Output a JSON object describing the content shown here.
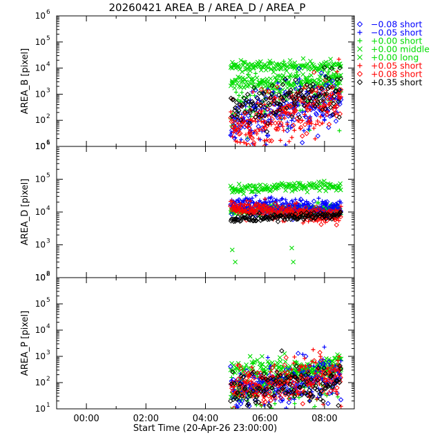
{
  "title": "20260421 AREA_B / AREA_D / AREA_P",
  "x_axis": {
    "label": "Start Time (20-Apr-26 23:00:00)",
    "range_hours": [
      -1,
      9
    ],
    "ticks": [
      {
        "value": 0,
        "label": "00:00"
      },
      {
        "value": 2,
        "label": "02:00"
      },
      {
        "value": 4,
        "label": "04:00"
      },
      {
        "value": 6,
        "label": "06:00"
      },
      {
        "value": 8,
        "label": "08:00"
      }
    ]
  },
  "legend": [
    {
      "id": "m008",
      "label": "−0.08 short",
      "symbol": "diamond",
      "color": "#0000ff"
    },
    {
      "id": "m005",
      "label": "−0.05 short",
      "symbol": "plus",
      "color": "#0000ff"
    },
    {
      "id": "p000s",
      "label": "+0.00 short",
      "symbol": "plus",
      "color": "#00dd00"
    },
    {
      "id": "p000m",
      "label": "+0.00 middle",
      "symbol": "cross",
      "color": "#00dd00"
    },
    {
      "id": "p000l",
      "label": "+0.00 long",
      "symbol": "cross",
      "color": "#00dd00"
    },
    {
      "id": "p005",
      "label": "+0.05 short",
      "symbol": "plus",
      "color": "#ff0000"
    },
    {
      "id": "p008",
      "label": "+0.08 short",
      "symbol": "diamond",
      "color": "#ff0000"
    },
    {
      "id": "p035",
      "label": "+0.35 short",
      "symbol": "diamond",
      "color": "#000000"
    }
  ],
  "chart_data": [
    {
      "type": "scatter",
      "panel": "AREA_B",
      "ylabel": "AREA_B [pixel]",
      "yscale": "log",
      "ylim": [
        10,
        1000000
      ],
      "ytick_labels": [
        "10^1",
        "10^2",
        "10^3",
        "10^4",
        "10^5",
        "10^6"
      ],
      "data_x_range_hours": [
        4.85,
        8.55
      ],
      "series": [
        {
          "name": "+0.00 long",
          "level": [
            3000,
            3000
          ],
          "spread_dex": 0.15,
          "points": [
            [
              4.9,
              3200
            ],
            [
              5.2,
              2800
            ],
            [
              5.6,
              3100
            ],
            [
              6.0,
              2900
            ],
            [
              6.4,
              3300
            ],
            [
              6.8,
              3000
            ],
            [
              7.2,
              3100
            ],
            [
              7.6,
              2900
            ],
            [
              8.0,
              3200
            ],
            [
              8.4,
              3000
            ]
          ]
        },
        {
          "name": "+0.00 middle",
          "level": [
            12000,
            12000
          ],
          "spread_dex": 0.1,
          "points": [
            [
              4.9,
              10000
            ],
            [
              5.1,
              12000
            ],
            [
              5.4,
              13000
            ],
            [
              5.8,
              14000
            ],
            [
              6.2,
              9000
            ],
            [
              6.6,
              1500
            ],
            [
              7.0,
              16000
            ],
            [
              7.4,
              3000
            ],
            [
              7.8,
              3500
            ],
            [
              8.2,
              3800
            ],
            [
              8.5,
              4000
            ]
          ]
        },
        {
          "name": "+0.00 short",
          "level": [
            300,
            2000
          ],
          "spread_dex": 0.5,
          "points": [
            [
              5.0,
              150
            ],
            [
              5.5,
              900
            ],
            [
              6.0,
              700
            ],
            [
              6.5,
              1500
            ],
            [
              7.0,
              300
            ],
            [
              7.5,
              1100
            ],
            [
              8.0,
              500
            ],
            [
              8.5,
              40
            ]
          ]
        },
        {
          "name": "−0.05 short",
          "level": [
            60,
            800
          ],
          "spread_dex": 0.5,
          "points": [
            [
              5.0,
              60
            ],
            [
              5.5,
              40
            ],
            [
              6.0,
              80
            ],
            [
              6.5,
              150
            ],
            [
              7.0,
              300
            ],
            [
              7.5,
              60
            ],
            [
              8.0,
              100
            ],
            [
              8.5,
              1000
            ]
          ]
        },
        {
          "name": "−0.08 short",
          "level": [
            80,
            600
          ],
          "spread_dex": 0.5,
          "points": [
            [
              5.0,
              100
            ],
            [
              5.5,
              70
            ],
            [
              6.0,
              150
            ],
            [
              6.5,
              250
            ],
            [
              7.0,
              250
            ],
            [
              7.5,
              100
            ],
            [
              8.0,
              150
            ],
            [
              8.5,
              500
            ]
          ]
        },
        {
          "name": "+0.05 short",
          "level": [
            40,
            600
          ],
          "spread_dex": 0.5,
          "points": [
            [
              5.0,
              40
            ],
            [
              5.5,
              25
            ],
            [
              6.0,
              60
            ],
            [
              6.5,
              120
            ],
            [
              7.0,
              200
            ],
            [
              7.5,
              80
            ],
            [
              8.0,
              300
            ],
            [
              8.5,
              800
            ]
          ]
        },
        {
          "name": "+0.08 short",
          "level": [
            50,
            700
          ],
          "spread_dex": 0.5,
          "points": [
            [
              5.0,
              50
            ],
            [
              5.5,
              30
            ],
            [
              6.0,
              50
            ],
            [
              6.5,
              150
            ],
            [
              7.0,
              220
            ],
            [
              7.5,
              120
            ],
            [
              8.0,
              350
            ],
            [
              8.5,
              700
            ]
          ]
        },
        {
          "name": "+0.35 short",
          "level": [
            300,
            1500
          ],
          "spread_dex": 0.4,
          "points": [
            [
              5.0,
              300
            ],
            [
              5.5,
              200
            ],
            [
              6.0,
              150
            ],
            [
              6.5,
              250
            ],
            [
              7.0,
              400
            ],
            [
              7.5,
              700
            ],
            [
              8.0,
              1000
            ],
            [
              8.5,
              1500
            ]
          ]
        }
      ]
    },
    {
      "type": "scatter",
      "panel": "AREA_D",
      "ylabel": "AREA_D [pixel]",
      "yscale": "log",
      "ylim": [
        100,
        1000000
      ],
      "ytick_labels": [
        "10^2",
        "10^3",
        "10^4",
        "10^5",
        "10^6"
      ],
      "data_x_range_hours": [
        4.85,
        8.55
      ],
      "series": [
        {
          "name": "+0.00 long",
          "level": [
            50000,
            60000
          ],
          "spread_dex": 0.08,
          "points": [
            [
              4.9,
              40000
            ],
            [
              5.2,
              55000
            ],
            [
              5.6,
              60000
            ],
            [
              6.0,
              50000
            ],
            [
              6.4,
              65000
            ],
            [
              6.8,
              60000
            ],
            [
              7.0,
              50000
            ],
            [
              8.5,
              55000
            ]
          ]
        },
        {
          "name": "+0.00 middle",
          "level": [
            11000,
            11000
          ],
          "spread_dex": 0.06,
          "points": [
            [
              4.9,
              700
            ],
            [
              5.0,
              300
            ],
            [
              6.9,
              800
            ],
            [
              6.95,
              300
            ]
          ]
        },
        {
          "name": "+0.00 short",
          "level": [
            12000,
            13000
          ],
          "spread_dex": 0.08,
          "points": [
            [
              5.0,
              12000
            ],
            [
              6.0,
              12000
            ],
            [
              7.0,
              12000
            ],
            [
              8.0,
              13000
            ]
          ]
        },
        {
          "name": "−0.05 short",
          "level": [
            18000,
            14000
          ],
          "spread_dex": 0.12,
          "points": [
            [
              5.0,
              15000
            ],
            [
              5.5,
              20000
            ],
            [
              6.0,
              25000
            ],
            [
              6.5,
              22000
            ],
            [
              7.0,
              18000
            ],
            [
              7.5,
              12000
            ],
            [
              8.0,
              11000
            ],
            [
              8.5,
              14000
            ]
          ]
        },
        {
          "name": "−0.08 short",
          "level": [
            15000,
            12000
          ],
          "spread_dex": 0.12,
          "points": [
            [
              5.0,
              14000
            ],
            [
              6.0,
              18000
            ],
            [
              7.0,
              15000
            ],
            [
              8.0,
              11000
            ],
            [
              8.5,
              13000
            ]
          ]
        },
        {
          "name": "+0.05 short",
          "level": [
            14000,
            7000
          ],
          "spread_dex": 0.12,
          "points": [
            [
              5.0,
              12000
            ],
            [
              6.0,
              25000
            ],
            [
              7.0,
              14000
            ],
            [
              8.0,
              7000
            ],
            [
              8.5,
              8000
            ]
          ]
        },
        {
          "name": "+0.08 short",
          "level": [
            12000,
            7500
          ],
          "spread_dex": 0.12,
          "points": [
            [
              5.0,
              11000
            ],
            [
              6.0,
              15000
            ],
            [
              7.0,
              11000
            ],
            [
              8.0,
              7000
            ]
          ]
        },
        {
          "name": "+0.35 short",
          "level": [
            6000,
            8000
          ],
          "spread_dex": 0.06,
          "points": [
            [
              5.0,
              6000
            ],
            [
              6.0,
              6500
            ],
            [
              7.0,
              6500
            ],
            [
              8.0,
              8000
            ],
            [
              8.5,
              9000
            ]
          ]
        }
      ]
    },
    {
      "type": "scatter",
      "panel": "AREA_P",
      "ylabel": "AREA_P [pixel]",
      "yscale": "log",
      "ylim": [
        10,
        1000000
      ],
      "ytick_labels": [
        "10^1",
        "10^2",
        "10^3",
        "10^4",
        "10^5",
        "10^6"
      ],
      "data_x_range_hours": [
        4.85,
        8.55
      ],
      "series": [
        {
          "name": "+0.00 long",
          "level": [
            30,
            800
          ],
          "spread_dex": 0.1,
          "points": [
            [
              4.9,
              10
            ],
            [
              5.0,
              100
            ],
            [
              5.5,
              220
            ],
            [
              5.9,
              1000
            ],
            [
              6.5,
              900
            ],
            [
              7.0,
              600
            ],
            [
              7.5,
              400
            ],
            [
              8.0,
              600
            ],
            [
              8.5,
              800
            ]
          ]
        },
        {
          "name": "+0.00 middle",
          "level": [
            300,
            300
          ],
          "spread_dex": 0.2,
          "points": [
            [
              5.9,
              500
            ],
            [
              6.5,
              300
            ],
            [
              7.5,
              200
            ]
          ]
        },
        {
          "name": "+0.00 short",
          "level": [
            40,
            150
          ],
          "spread_dex": 0.4,
          "points": [
            [
              5.0,
              40
            ],
            [
              6.0,
              100
            ],
            [
              7.0,
              60
            ],
            [
              8.0,
              100
            ]
          ]
        },
        {
          "name": "−0.05 short",
          "level": [
            60,
            200
          ],
          "spread_dex": 0.4,
          "points": [
            [
              5.5,
              80
            ],
            [
              6.0,
              60
            ],
            [
              6.5,
              30
            ],
            [
              7.0,
              40
            ],
            [
              7.5,
              20
            ],
            [
              8.0,
              100
            ],
            [
              8.5,
              200
            ]
          ]
        },
        {
          "name": "−0.08 short",
          "level": [
            60,
            150
          ],
          "spread_dex": 0.4,
          "points": [
            [
              5.5,
              60
            ],
            [
              6.5,
              40
            ],
            [
              7.5,
              30
            ],
            [
              8.5,
              150
            ]
          ]
        },
        {
          "name": "+0.05 short",
          "level": [
            80,
            200
          ],
          "spread_dex": 0.4,
          "points": [
            [
              5.5,
              200
            ],
            [
              6.0,
              150
            ],
            [
              6.5,
              80
            ],
            [
              7.5,
              40
            ],
            [
              8.5,
              300
            ]
          ]
        },
        {
          "name": "+0.08 short",
          "level": [
            60,
            150
          ],
          "spread_dex": 0.4,
          "points": [
            [
              5.5,
              100
            ],
            [
              6.5,
              40
            ],
            [
              7.5,
              30
            ],
            [
              8.5,
              200
            ]
          ]
        },
        {
          "name": "+0.35 short",
          "level": [
            40,
            100
          ],
          "spread_dex": 0.4,
          "points": [
            [
              7.0,
              30
            ],
            [
              7.5,
              20
            ],
            [
              8.0,
              60
            ],
            [
              8.5,
              100
            ]
          ]
        }
      ]
    }
  ]
}
